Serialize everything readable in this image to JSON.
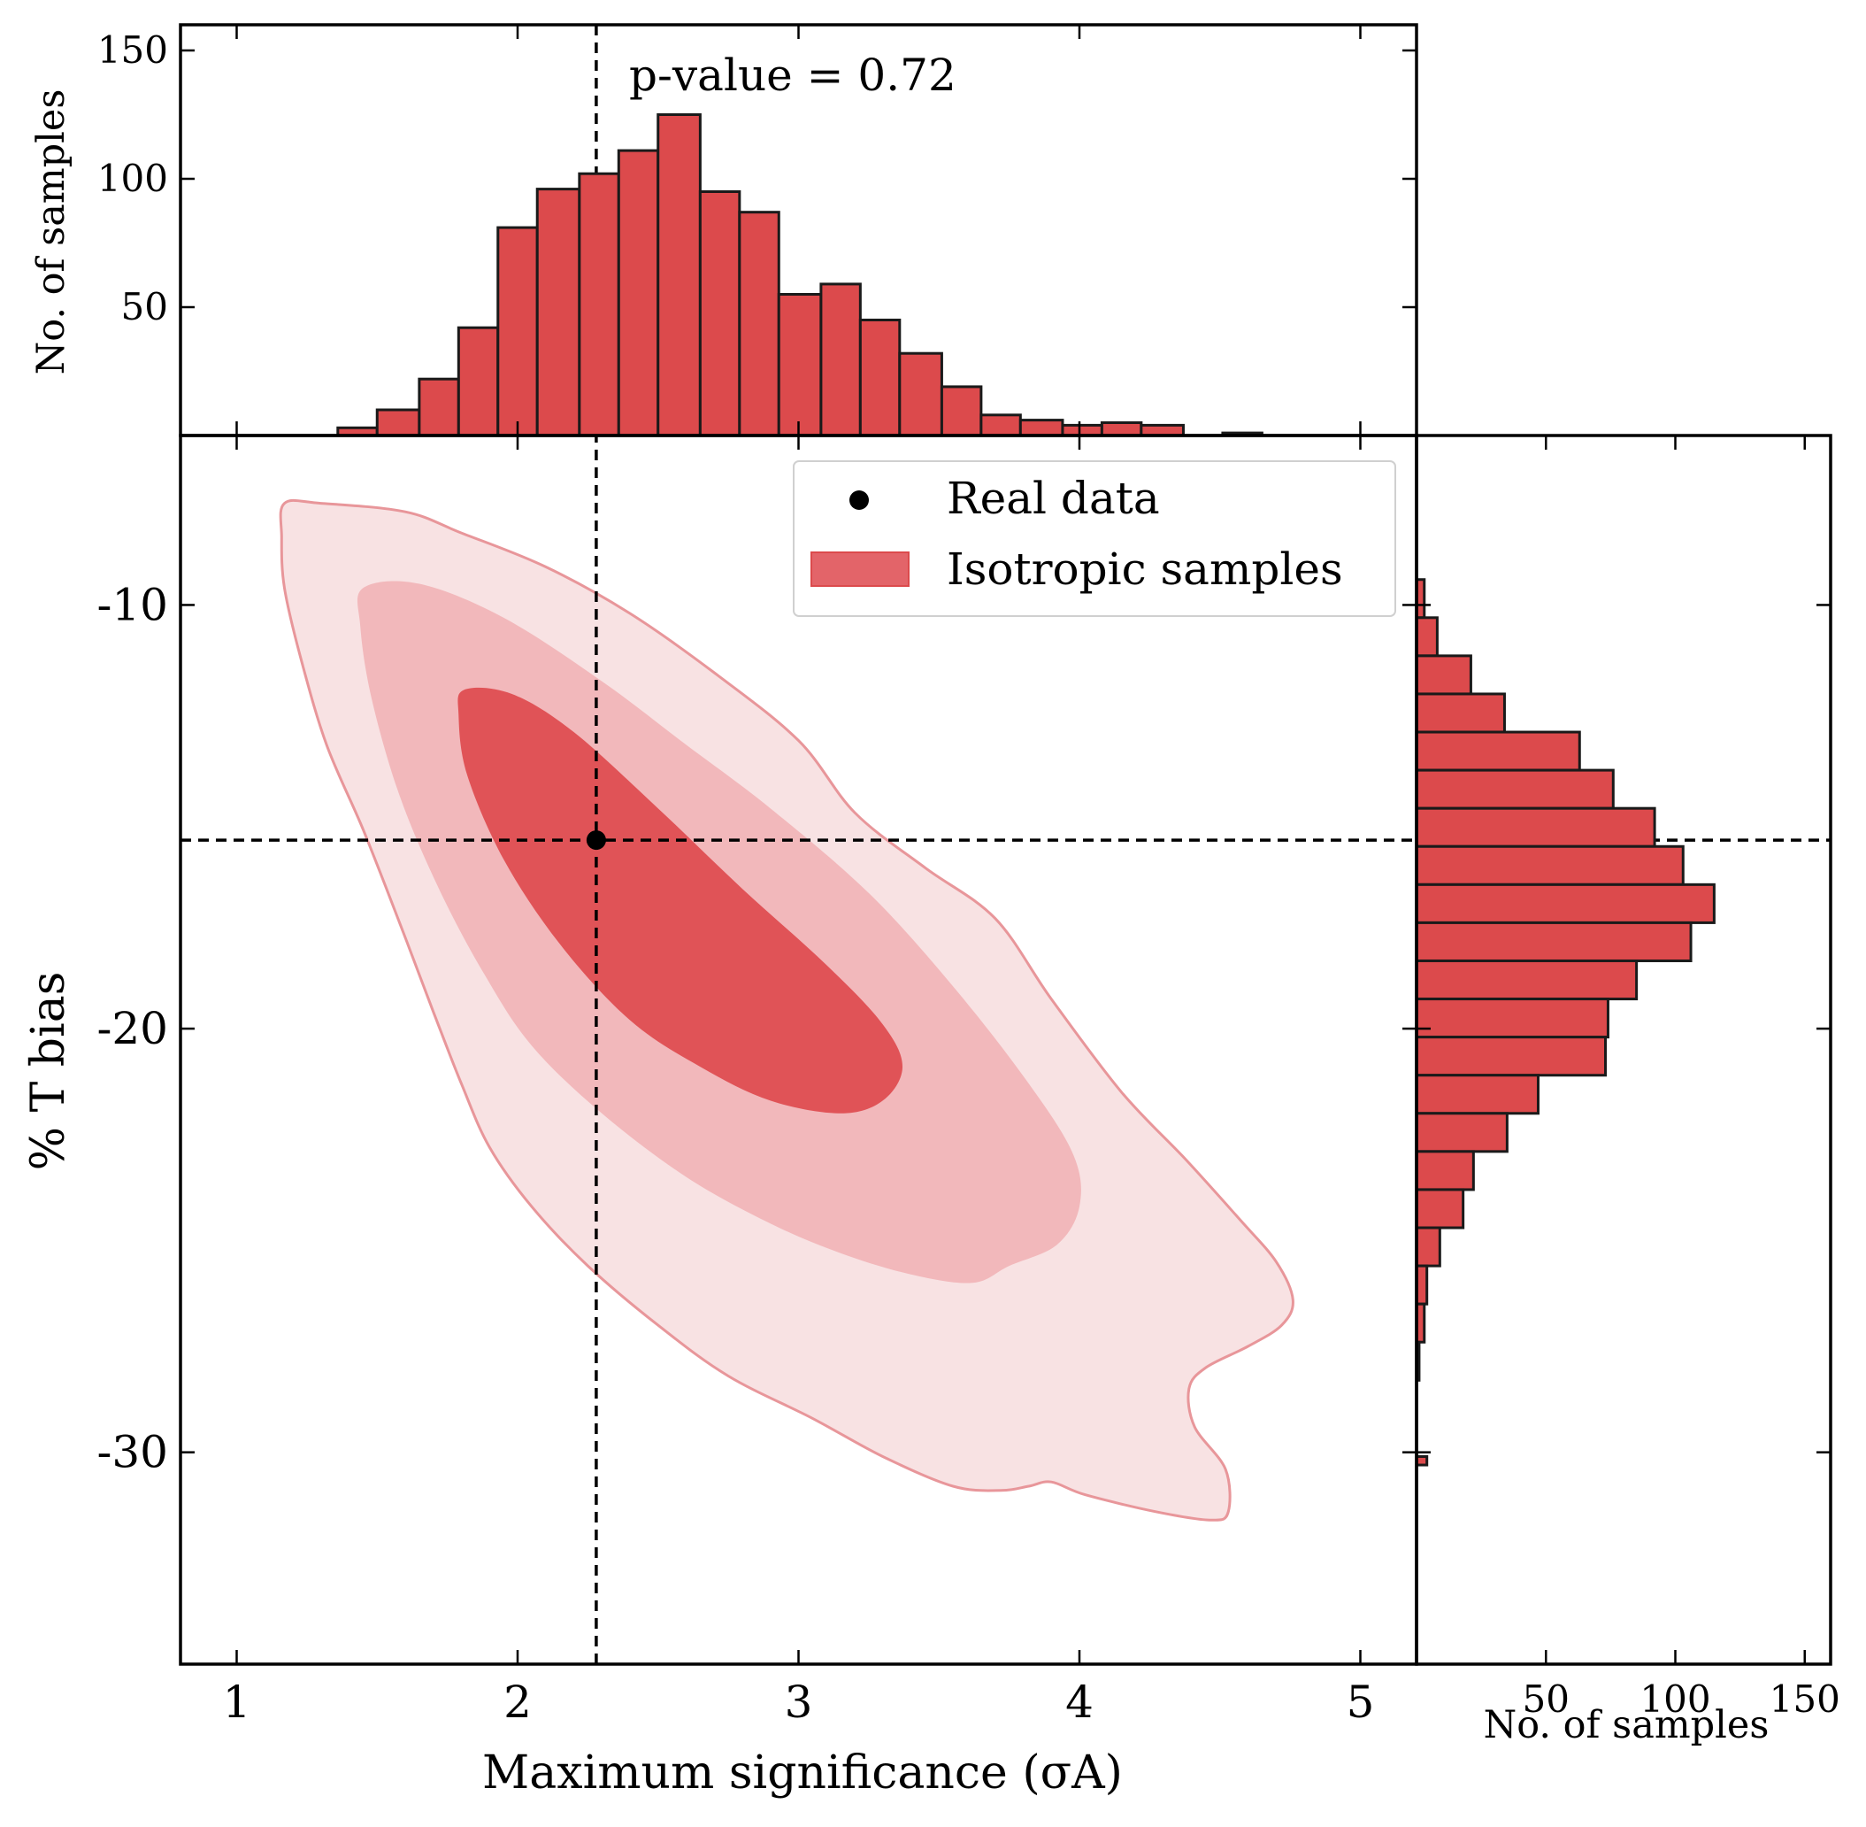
{
  "colors": {
    "bar_fill": "#dc4a4c",
    "bar_edge": "#1a1a1a",
    "contour_inner": "#e05357",
    "contour_mid": "#f2b8bb",
    "contour_outer": "#f8e2e3",
    "contour_line": "#e8969a",
    "marker": "#000000"
  },
  "chart_data": [
    {
      "type": "histogram",
      "panel": "top-marginal",
      "ylabel": "No. of samples",
      "annotation": "p-value = 0.72",
      "reference_line_x": 2.28,
      "xlim": [
        0.8,
        5.2
      ],
      "ylim": [
        0,
        160
      ],
      "yticks": [
        50,
        100,
        150
      ],
      "bin_edges": [
        1.36,
        1.5,
        1.65,
        1.79,
        1.93,
        2.07,
        2.22,
        2.36,
        2.5,
        2.65,
        2.79,
        2.93,
        3.08,
        3.22,
        3.36,
        3.51,
        3.65,
        3.79,
        3.94,
        4.08,
        4.22,
        4.37,
        4.51,
        4.65
      ],
      "counts": [
        3,
        10,
        22,
        42,
        81,
        96,
        102,
        111,
        125,
        95,
        87,
        55,
        59,
        45,
        32,
        19,
        8,
        6,
        4,
        5,
        4,
        0,
        1
      ]
    },
    {
      "type": "contour",
      "panel": "main",
      "xlabel": "Maximum significance (σA)",
      "ylabel": "% T bias",
      "xlim": [
        0.8,
        5.2
      ],
      "ylim": [
        -35,
        -6
      ],
      "xticks": [
        1,
        2,
        3,
        4,
        5
      ],
      "yticks": [
        -10,
        -20,
        -30
      ],
      "real_data": {
        "x": 2.28,
        "y": -15.55
      },
      "reference_lines": {
        "x": 2.28,
        "y": -15.55
      },
      "legend": {
        "position": "top-center",
        "entries": [
          "Real data",
          "Isotropic samples"
        ]
      },
      "contours": [
        {
          "level": "outer",
          "points": [
            [
              1.17,
              -7.6
            ],
            [
              1.3,
              -7.6
            ],
            [
              1.6,
              -7.8
            ],
            [
              1.8,
              -8.3
            ],
            [
              2.1,
              -9.1
            ],
            [
              2.4,
              -10.2
            ],
            [
              2.7,
              -11.6
            ],
            [
              3.0,
              -13.2
            ],
            [
              3.2,
              -14.9
            ],
            [
              3.45,
              -16.2
            ],
            [
              3.7,
              -17.4
            ],
            [
              3.9,
              -19.3
            ],
            [
              4.15,
              -21.5
            ],
            [
              4.38,
              -23.1
            ],
            [
              4.57,
              -24.5
            ],
            [
              4.7,
              -25.5
            ],
            [
              4.76,
              -26.4
            ],
            [
              4.72,
              -27.0
            ],
            [
              4.6,
              -27.5
            ],
            [
              4.45,
              -28.0
            ],
            [
              4.39,
              -28.5
            ],
            [
              4.41,
              -29.4
            ],
            [
              4.52,
              -30.4
            ],
            [
              4.53,
              -31.4
            ],
            [
              4.47,
              -31.6
            ],
            [
              4.27,
              -31.4
            ],
            [
              4.02,
              -31.0
            ],
            [
              3.9,
              -30.7
            ],
            [
              3.82,
              -30.8
            ],
            [
              3.72,
              -30.9
            ],
            [
              3.55,
              -30.8
            ],
            [
              3.3,
              -30.1
            ],
            [
              3.05,
              -29.2
            ],
            [
              2.75,
              -28.2
            ],
            [
              2.5,
              -27.0
            ],
            [
              2.25,
              -25.6
            ],
            [
              2.05,
              -24.2
            ],
            [
              1.9,
              -22.8
            ],
            [
              1.8,
              -21.3
            ],
            [
              1.7,
              -19.6
            ],
            [
              1.58,
              -17.5
            ],
            [
              1.45,
              -15.3
            ],
            [
              1.32,
              -13.3
            ],
            [
              1.23,
              -11.3
            ],
            [
              1.17,
              -9.6
            ],
            [
              1.16,
              -8.4
            ]
          ]
        },
        {
          "level": "middle",
          "points": [
            [
              1.45,
              -9.6
            ],
            [
              1.65,
              -9.5
            ],
            [
              1.95,
              -10.3
            ],
            [
              2.3,
              -11.8
            ],
            [
              2.6,
              -13.3
            ],
            [
              2.9,
              -14.8
            ],
            [
              3.25,
              -16.8
            ],
            [
              3.55,
              -19.0
            ],
            [
              3.82,
              -21.3
            ],
            [
              3.98,
              -23.0
            ],
            [
              4.0,
              -24.2
            ],
            [
              3.92,
              -25.1
            ],
            [
              3.75,
              -25.6
            ],
            [
              3.62,
              -26.0
            ],
            [
              3.4,
              -25.8
            ],
            [
              3.15,
              -25.3
            ],
            [
              2.9,
              -24.6
            ],
            [
              2.6,
              -23.5
            ],
            [
              2.3,
              -22.0
            ],
            [
              2.05,
              -20.4
            ],
            [
              1.88,
              -18.7
            ],
            [
              1.72,
              -16.7
            ],
            [
              1.58,
              -14.5
            ],
            [
              1.48,
              -12.2
            ],
            [
              1.44,
              -10.5
            ]
          ]
        },
        {
          "level": "inner",
          "points": [
            [
              1.81,
              -12.0
            ],
            [
              1.98,
              -12.1
            ],
            [
              2.2,
              -13.0
            ],
            [
              2.5,
              -14.8
            ],
            [
              2.8,
              -16.7
            ],
            [
              3.1,
              -18.5
            ],
            [
              3.3,
              -19.9
            ],
            [
              3.37,
              -20.9
            ],
            [
              3.3,
              -21.7
            ],
            [
              3.15,
              -22.0
            ],
            [
              2.9,
              -21.7
            ],
            [
              2.65,
              -20.9
            ],
            [
              2.4,
              -19.8
            ],
            [
              2.15,
              -18.0
            ],
            [
              1.95,
              -16.0
            ],
            [
              1.82,
              -14.0
            ],
            [
              1.79,
              -12.6
            ]
          ]
        }
      ]
    },
    {
      "type": "histogram",
      "panel": "right-marginal",
      "orientation": "horizontal",
      "xlabel": "No. of samples",
      "xlim": [
        0,
        160
      ],
      "xticks": [
        50,
        100,
        150
      ],
      "bin_edges": [
        -9.4,
        -10.3,
        -11.2,
        -12.1,
        -13.0,
        -13.9,
        -14.8,
        -15.7,
        -16.6,
        -17.5,
        -18.4,
        -19.3,
        -20.2,
        -21.1,
        -22.0,
        -22.9,
        -23.8,
        -24.7,
        -25.6,
        -26.5,
        -27.4,
        -28.3,
        -29.2,
        -30.1,
        -30.3
      ],
      "counts": [
        3,
        8,
        21,
        34,
        63,
        76,
        92,
        103,
        115,
        106,
        85,
        74,
        73,
        47,
        35,
        22,
        18,
        9,
        4,
        3,
        1,
        0,
        0,
        4
      ]
    }
  ]
}
